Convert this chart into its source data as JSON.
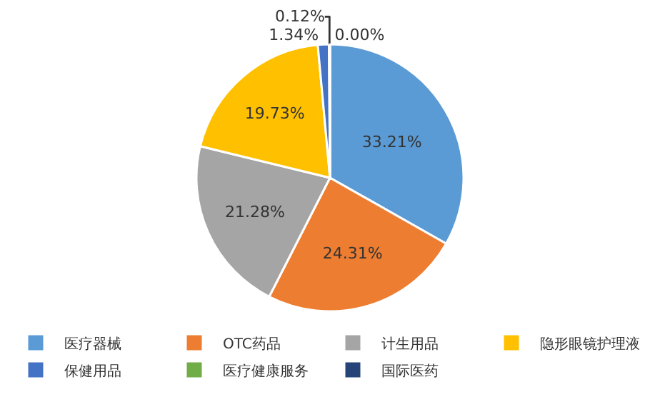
{
  "chart_data": {
    "type": "pie",
    "categories": [
      "医疗器械",
      "OTC药品",
      "计生用品",
      "隐形眼镜护理液",
      "保健用品",
      "医疗健康服务",
      "国际医药"
    ],
    "values": [
      33.21,
      24.31,
      21.28,
      19.73,
      1.34,
      0.12,
      0.0
    ],
    "value_labels": [
      "33.21%",
      "24.31%",
      "21.28%",
      "19.73%",
      "1.34%",
      "0.12%",
      "0.00%"
    ],
    "colors": [
      "#5b9bd5",
      "#ed7d31",
      "#a5a5a5",
      "#ffc000",
      "#4472c4",
      "#70ad47",
      "#264478"
    ],
    "legend": "bottom"
  }
}
